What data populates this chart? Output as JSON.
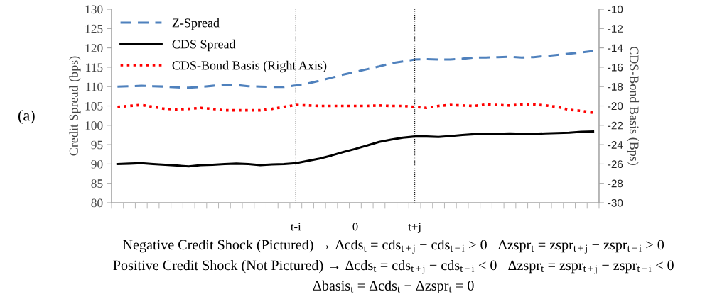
{
  "chart_data": {
    "type": "line",
    "ylabel": "Credit Spread (bps)",
    "y2label": "CDS-Bond Basis (Bps)",
    "categories": [
      null,
      null,
      null,
      null,
      null,
      null,
      null,
      null,
      null,
      null,
      null,
      null,
      null,
      null,
      null,
      "t-i",
      null,
      null,
      null,
      null,
      "0",
      null,
      null,
      null,
      null,
      "t+j",
      null,
      null,
      null,
      null,
      null,
      null,
      null,
      null,
      null,
      null,
      null,
      null,
      null,
      null,
      null
    ],
    "ylim": [
      80,
      130
    ],
    "yticks": [
      80,
      85,
      90,
      95,
      100,
      105,
      110,
      115,
      120,
      125,
      130
    ],
    "y2lim": [
      -30,
      -10
    ],
    "y2ticks": [
      -30,
      -28,
      -26,
      -24,
      -22,
      -20,
      -18,
      -16,
      -14,
      -12,
      -10
    ],
    "grid": false,
    "legend": "top left",
    "marker": "none",
    "series": [
      {
        "name": "Z-Spread",
        "color": "#4f81bd",
        "line_style": "dashed",
        "values": [
          110.0,
          110.1,
          110.2,
          110.1,
          110.0,
          109.8,
          109.7,
          109.9,
          110.2,
          110.5,
          110.4,
          110.1,
          110.0,
          109.9,
          109.9,
          110.3,
          110.8,
          111.5,
          112.3,
          113.1,
          113.8,
          114.5,
          115.2,
          116.0,
          116.5,
          117.0,
          117.1,
          117.0,
          117.0,
          117.2,
          117.5,
          117.5,
          117.6,
          117.7,
          117.5,
          117.6,
          117.9,
          118.2,
          118.5,
          118.8,
          119.2
        ]
      },
      {
        "name": "CDS Spread",
        "color": "#000000",
        "line_style": "solid",
        "values": [
          90.0,
          90.1,
          90.2,
          90.0,
          89.8,
          89.6,
          89.4,
          89.7,
          89.8,
          90.0,
          90.1,
          90.0,
          89.7,
          89.9,
          90.0,
          90.2,
          90.8,
          91.4,
          92.2,
          93.1,
          93.9,
          94.8,
          95.7,
          96.3,
          96.8,
          97.1,
          97.1,
          97.0,
          97.2,
          97.5,
          97.7,
          97.7,
          97.8,
          97.9,
          97.8,
          97.8,
          97.9,
          98.0,
          98.1,
          98.3,
          98.4
        ]
      },
      {
        "name": "CDS-Bond Basis (Right Axis)",
        "color": "#ff0000",
        "line_style": "dotted",
        "axis": "y2",
        "values": [
          -20.1,
          -20.0,
          -19.9,
          -20.1,
          -20.3,
          -20.35,
          -20.3,
          -20.2,
          -20.3,
          -20.45,
          -20.45,
          -20.45,
          -20.45,
          -20.3,
          -20.1,
          -19.9,
          -19.95,
          -20.0,
          -20.0,
          -20.0,
          -20.0,
          -20.0,
          -19.95,
          -20.0,
          -20.0,
          -20.1,
          -20.2,
          -20.0,
          -19.9,
          -19.95,
          -20.0,
          -19.85,
          -19.9,
          -19.95,
          -19.85,
          -19.85,
          -19.95,
          -20.1,
          -20.4,
          -20.5,
          -20.7
        ]
      }
    ],
    "ref_lines": [
      {
        "axis": "x",
        "value": "t-i",
        "color": "#000000",
        "line_style": "dotted"
      },
      {
        "axis": "x",
        "value": "t+j",
        "color": "#000000",
        "line_style": "dotted"
      }
    ],
    "annotations": [
      "(a)",
      "Negative Credit Shock (Pictured) → Δcds$_{t}$ = cds$_{t+j}$ − cds$_{t−i}$ > 0   Δzspr$_{t}$ = zspr$_{t+j}$ − zspr$_{t−i}$ > 0",
      "Positive Credit Shock (Not Pictured) → Δcds$_{t}$ = cds$_{t+j}$ − cds$_{t−i}$ < 0   Δzspr$_{t}$ = zspr$_{t+j}$ − zspr$_{t−i}$ < 0",
      "Δbasis$_{t}$ = Δcds$_{t}$ − Δzspr$_{t}$ = 0"
    ]
  }
}
